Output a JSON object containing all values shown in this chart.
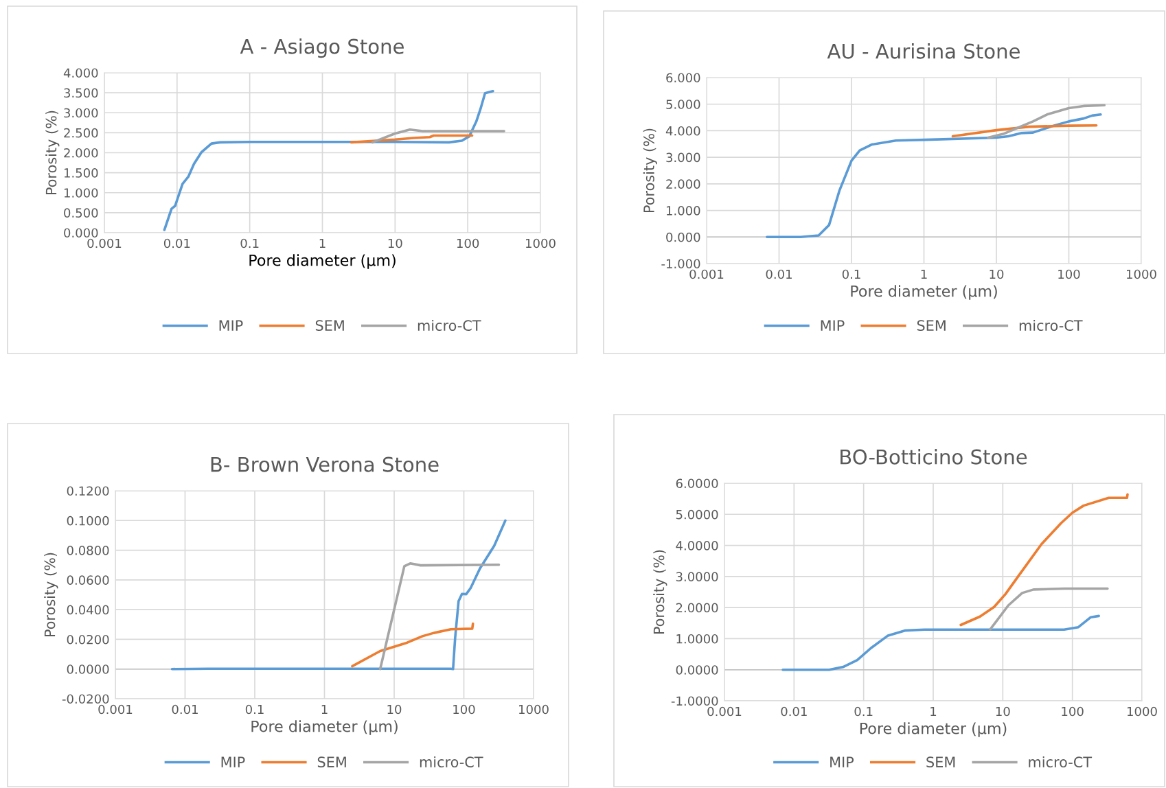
{
  "chart_data": [
    {
      "type": "line",
      "title": "A - Asiago Stone",
      "xlabel": "Pore diameter (µm)",
      "ylabel": "Porosity (%)",
      "log": "x",
      "grid": true,
      "legend": "bottom",
      "marker": "none",
      "line_style": "solid",
      "xlim": [
        0.001,
        1000
      ],
      "xticks": [
        0.001,
        0.01,
        0.1,
        1,
        10,
        100,
        1000
      ],
      "ylim": [
        0,
        4
      ],
      "yticks": [
        {
          "value": 0,
          "label": "0.000"
        },
        {
          "value": 0.5,
          "label": "0.500"
        },
        {
          "value": 1,
          "label": "1.000"
        },
        {
          "value": 1.5,
          "label": "1.500"
        },
        {
          "value": 2,
          "label": "2.000"
        },
        {
          "value": 2.5,
          "label": "2.500"
        },
        {
          "value": 3,
          "label": "3.000"
        },
        {
          "value": 3.5,
          "label": "3.500"
        },
        {
          "value": 4,
          "label": "4.000"
        }
      ],
      "series": [
        {
          "name": "MIP",
          "color": "#5b9bd5",
          "x": [
            0.0067,
            0.0084,
            0.0094,
            0.0119,
            0.0143,
            0.0171,
            0.0216,
            0.0298,
            0.039,
            0.1,
            1,
            10,
            55,
            83,
            105,
            131,
            150,
            173,
            222
          ],
          "values": [
            0.07,
            0.6,
            0.67,
            1.22,
            1.4,
            1.72,
            2.01,
            2.23,
            2.26,
            2.27,
            2.27,
            2.27,
            2.26,
            2.3,
            2.41,
            2.78,
            3.1,
            3.49,
            3.54
          ]
        },
        {
          "name": "SEM",
          "color": "#ed7d31",
          "x": [
            2.5,
            10,
            18,
            30,
            34,
            115
          ],
          "values": [
            2.26,
            2.33,
            2.37,
            2.39,
            2.43,
            2.43
          ]
        },
        {
          "name": "micro-CT",
          "color": "#a5a5a5",
          "x": [
            4.9,
            10,
            16,
            24,
            316
          ],
          "values": [
            2.26,
            2.48,
            2.58,
            2.54,
            2.54
          ]
        }
      ]
    },
    {
      "type": "line",
      "title": "AU - Aurisina Stone",
      "xlabel": "Pore diameter (µm)",
      "ylabel": "Porosity (%)",
      "log": "x",
      "grid": true,
      "legend": "bottom",
      "marker": "none",
      "line_style": "solid",
      "xlim": [
        0.001,
        1000
      ],
      "xticks": [
        0.001,
        0.01,
        0.1,
        1,
        10,
        100,
        1000
      ],
      "ylim": [
        -1,
        6
      ],
      "yticks": [
        {
          "value": -1,
          "label": "-1.000"
        },
        {
          "value": 0,
          "label": "0.000"
        },
        {
          "value": 1,
          "label": "1.000"
        },
        {
          "value": 2,
          "label": "2.000"
        },
        {
          "value": 3,
          "label": "3.000"
        },
        {
          "value": 4,
          "label": "4.000"
        },
        {
          "value": 5,
          "label": "5.000"
        },
        {
          "value": 6,
          "label": "6.000"
        }
      ],
      "series": [
        {
          "name": "MIP",
          "color": "#5b9bd5",
          "x": [
            0.0068,
            0.02,
            0.0352,
            0.049,
            0.068,
            0.1,
            0.13,
            0.19,
            0.41,
            1.05,
            10,
            14.7,
            21.8,
            32,
            57,
            100,
            160,
            210,
            275
          ],
          "values": [
            0,
            0,
            0.06,
            0.45,
            1.74,
            2.87,
            3.26,
            3.48,
            3.63,
            3.66,
            3.74,
            3.79,
            3.91,
            3.93,
            4.16,
            4.35,
            4.46,
            4.57,
            4.61
          ]
        },
        {
          "name": "SEM",
          "color": "#ed7d31",
          "x": [
            2.5,
            10,
            28,
            100,
            240
          ],
          "values": [
            3.79,
            4.02,
            4.15,
            4.19,
            4.2
          ]
        },
        {
          "name": "micro-CT",
          "color": "#a5a5a5",
          "x": [
            7.7,
            12.5,
            20,
            32,
            50,
            100,
            160,
            310
          ],
          "values": [
            3.74,
            3.88,
            4.12,
            4.35,
            4.61,
            4.85,
            4.93,
            4.96
          ]
        }
      ]
    },
    {
      "type": "line",
      "title": "B- Brown Verona Stone",
      "xlabel": "Pore diameter (µm)",
      "ylabel": "Porosity (%)",
      "log": "x",
      "grid": true,
      "legend": "bottom",
      "marker": "none",
      "line_style": "solid",
      "xlim": [
        0.001,
        1000
      ],
      "xticks": [
        0.001,
        0.01,
        0.1,
        1,
        10,
        100,
        1000
      ],
      "ylim": [
        -0.02,
        0.12
      ],
      "yticks": [
        {
          "value": -0.02,
          "label": "-0.0200"
        },
        {
          "value": 0,
          "label": "0.0000"
        },
        {
          "value": 0.02,
          "label": "0.0200"
        },
        {
          "value": 0.04,
          "label": "0.0400"
        },
        {
          "value": 0.06,
          "label": "0.0600"
        },
        {
          "value": 0.08,
          "label": "0.0800"
        },
        {
          "value": 0.1,
          "label": "0.1000"
        },
        {
          "value": 0.12,
          "label": "0.1200"
        }
      ],
      "series": [
        {
          "name": "MIP",
          "color": "#5b9bd5",
          "x": [
            0.0065,
            0.0218,
            65,
            70,
            75,
            84,
            94,
            108,
            125,
            170,
            273,
            394
          ],
          "values": [
            0,
            0.0002,
            0.0002,
            0,
            0.0211,
            0.0457,
            0.0506,
            0.0504,
            0.0545,
            0.0677,
            0.083,
            0.1
          ]
        },
        {
          "name": "SEM",
          "color": "#ed7d31",
          "x": [
            2.5,
            6.3,
            14.6,
            25.4,
            37,
            65,
            132,
            135
          ],
          "values": [
            0.0019,
            0.0121,
            0.0174,
            0.0221,
            0.0243,
            0.0268,
            0.0272,
            0.0306
          ]
        },
        {
          "name": "micro-CT",
          "color": "#a5a5a5",
          "x": [
            6.3,
            14,
            17,
            24,
            318
          ],
          "values": [
            0,
            0.0692,
            0.0711,
            0.0698,
            0.0702
          ]
        }
      ]
    },
    {
      "type": "line",
      "title": "BO-Botticino Stone",
      "xlabel": "Pore diameter (µm)",
      "ylabel": "Porosity (%)",
      "log": "x",
      "grid": true,
      "legend": "bottom",
      "marker": "none",
      "line_style": "solid",
      "xlim": [
        0.001,
        1000
      ],
      "xticks": [
        0.001,
        0.01,
        0.1,
        1,
        10,
        100,
        1000
      ],
      "ylim": [
        -1,
        6
      ],
      "yticks": [
        {
          "value": -1,
          "label": "-1.0000"
        },
        {
          "value": 0,
          "label": "0.0000"
        },
        {
          "value": 1,
          "label": "1.0000"
        },
        {
          "value": 2,
          "label": "2.0000"
        },
        {
          "value": 3,
          "label": "3.0000"
        },
        {
          "value": 4,
          "label": "4.0000"
        },
        {
          "value": 5,
          "label": "5.0000"
        },
        {
          "value": 6,
          "label": "6.0000"
        }
      ],
      "series": [
        {
          "name": "MIP",
          "color": "#5b9bd5",
          "x": [
            0.0069,
            0.032,
            0.051,
            0.081,
            0.128,
            0.224,
            0.39,
            0.75,
            76,
            122,
            184,
            240
          ],
          "values": [
            0,
            0,
            0.09,
            0.31,
            0.7,
            1.1,
            1.26,
            1.29,
            1.29,
            1.37,
            1.69,
            1.73
          ]
        },
        {
          "name": "SEM",
          "color": "#ed7d31",
          "x": [
            2.49,
            4.7,
            7.5,
            10.9,
            17.2,
            36,
            69,
            100,
            145,
            333,
            610,
            620
          ],
          "values": [
            1.44,
            1.71,
            2.02,
            2.43,
            3.05,
            4.04,
            4.72,
            5.05,
            5.28,
            5.53,
            5.53,
            5.64
          ]
        },
        {
          "name": "micro-CT",
          "color": "#a5a5a5",
          "x": [
            6.6,
            12,
            19,
            27.6,
            76,
            320
          ],
          "values": [
            1.3,
            2.07,
            2.47,
            2.58,
            2.61,
            2.61
          ]
        }
      ]
    }
  ]
}
